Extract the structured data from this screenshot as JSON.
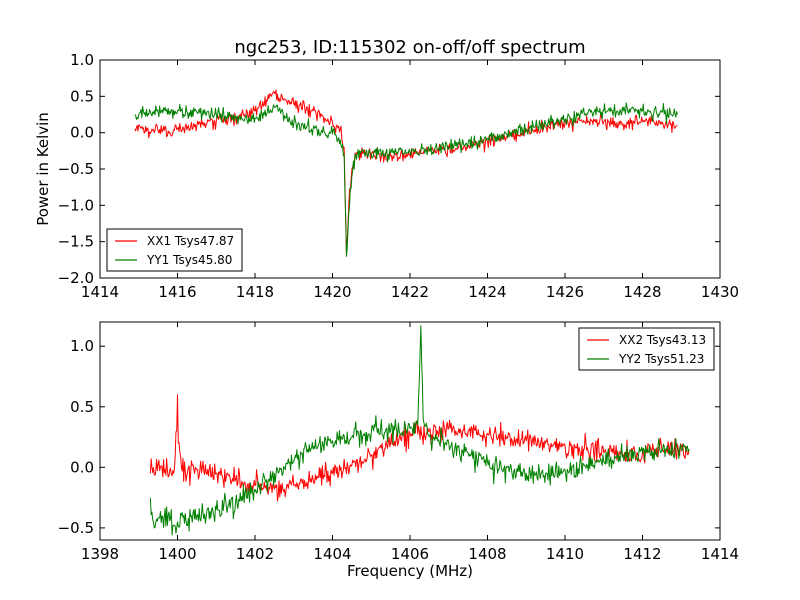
{
  "figure": {
    "title": "ngc253, ID:115302 on-off/off spectrum"
  },
  "chart_data": [
    {
      "type": "line",
      "title": "ngc253, ID:115302 on-off/off spectrum",
      "xlabel": "",
      "ylabel": "Power in Kelvin",
      "xlim": [
        1414,
        1430
      ],
      "ylim": [
        -2.0,
        1.0
      ],
      "xticks": [
        1414,
        1416,
        1418,
        1420,
        1422,
        1424,
        1426,
        1428,
        1430
      ],
      "yticks": [
        -2.0,
        -1.5,
        -1.0,
        -0.5,
        0.0,
        0.5,
        1.0
      ],
      "xtick_labels": [
        "1414",
        "1416",
        "1418",
        "1420",
        "1422",
        "1424",
        "1426",
        "1428",
        "1430"
      ],
      "ytick_labels": [
        "−2.0",
        "−1.5",
        "−1.0",
        "−0.5",
        "0.0",
        "0.5",
        "1.0"
      ],
      "grid": false,
      "legend_position": "lower-left",
      "series": [
        {
          "name": "XX1 Tsys47.87",
          "color": "#ff0000",
          "x": [
            1414.9,
            1415.5,
            1416.0,
            1416.5,
            1417.0,
            1417.5,
            1418.0,
            1418.3,
            1418.5,
            1418.8,
            1419.0,
            1419.5,
            1419.8,
            1420.0,
            1420.1,
            1420.2,
            1420.3,
            1420.36,
            1420.42,
            1420.5,
            1420.6,
            1420.8,
            1421.0,
            1421.5,
            1422.0,
            1422.5,
            1423.0,
            1423.5,
            1424.0,
            1424.5,
            1425.0,
            1425.5,
            1426.0,
            1426.5,
            1427.0,
            1427.5,
            1428.0,
            1428.5,
            1428.9
          ],
          "y": [
            0.05,
            0.02,
            0.05,
            0.1,
            0.15,
            0.2,
            0.3,
            0.45,
            0.55,
            0.45,
            0.4,
            0.3,
            0.2,
            0.15,
            0.1,
            0.05,
            -0.2,
            -1.7,
            -1.0,
            -0.5,
            -0.3,
            -0.28,
            -0.3,
            -0.32,
            -0.3,
            -0.25,
            -0.22,
            -0.18,
            -0.12,
            -0.05,
            0.02,
            0.08,
            0.12,
            0.15,
            0.15,
            0.12,
            0.15,
            0.12,
            0.1
          ]
        },
        {
          "name": "YY1 Tsys45.80",
          "color": "#008000",
          "x": [
            1414.9,
            1415.5,
            1416.0,
            1416.5,
            1417.0,
            1417.5,
            1418.0,
            1418.3,
            1418.5,
            1418.8,
            1419.0,
            1419.5,
            1419.8,
            1420.0,
            1420.1,
            1420.2,
            1420.3,
            1420.36,
            1420.42,
            1420.5,
            1420.6,
            1420.8,
            1421.0,
            1421.5,
            1422.0,
            1422.5,
            1423.0,
            1423.5,
            1424.0,
            1424.5,
            1425.0,
            1425.5,
            1426.0,
            1426.5,
            1427.0,
            1427.5,
            1428.0,
            1428.5,
            1428.9
          ],
          "y": [
            0.25,
            0.28,
            0.3,
            0.28,
            0.25,
            0.22,
            0.2,
            0.25,
            0.35,
            0.2,
            0.12,
            0.05,
            0.0,
            -0.02,
            -0.05,
            -0.1,
            -0.3,
            -1.7,
            -1.1,
            -0.6,
            -0.3,
            -0.25,
            -0.3,
            -0.28,
            -0.27,
            -0.25,
            -0.2,
            -0.15,
            -0.08,
            -0.02,
            0.05,
            0.12,
            0.18,
            0.25,
            0.3,
            0.3,
            0.3,
            0.28,
            0.25
          ]
        }
      ]
    },
    {
      "type": "line",
      "title": "",
      "xlabel": "Frequency (MHz)",
      "ylabel": "",
      "xlim": [
        1398,
        1414
      ],
      "ylim": [
        -0.6,
        1.2
      ],
      "xticks": [
        1398,
        1400,
        1402,
        1404,
        1406,
        1408,
        1410,
        1412,
        1414
      ],
      "yticks": [
        -0.5,
        0.0,
        0.5,
        1.0
      ],
      "xtick_labels": [
        "1398",
        "1400",
        "1402",
        "1404",
        "1406",
        "1408",
        "1410",
        "1412",
        "1414"
      ],
      "ytick_labels": [
        "−0.5",
        "0.0",
        "0.5",
        "1.0"
      ],
      "grid": false,
      "legend_position": "upper-right",
      "series": [
        {
          "name": "XX2 Tsys43.13",
          "color": "#ff0000",
          "x": [
            1399.3,
            1399.6,
            1399.9,
            1399.98,
            1400.0,
            1400.02,
            1400.1,
            1400.5,
            1401.0,
            1401.5,
            1402.0,
            1402.5,
            1403.0,
            1403.5,
            1404.0,
            1404.5,
            1405.0,
            1405.5,
            1406.0,
            1406.5,
            1407.0,
            1407.5,
            1408.0,
            1408.5,
            1409.0,
            1409.5,
            1410.0,
            1410.5,
            1411.0,
            1411.5,
            1412.0,
            1412.5,
            1413.2
          ],
          "y": [
            -0.05,
            0.0,
            -0.05,
            0.3,
            0.6,
            0.2,
            0.0,
            -0.02,
            -0.05,
            -0.1,
            -0.15,
            -0.18,
            -0.15,
            -0.1,
            -0.05,
            0.02,
            0.1,
            0.2,
            0.28,
            0.3,
            0.32,
            0.3,
            0.28,
            0.25,
            0.22,
            0.2,
            0.18,
            0.15,
            0.12,
            0.1,
            0.12,
            0.15,
            0.15
          ]
        },
        {
          "name": "YY2 Tsys51.23",
          "color": "#008000",
          "x": [
            1399.3,
            1399.4,
            1399.6,
            1400.0,
            1400.5,
            1401.0,
            1401.5,
            1402.0,
            1402.5,
            1403.0,
            1403.5,
            1404.0,
            1404.5,
            1405.0,
            1405.5,
            1406.0,
            1406.2,
            1406.28,
            1406.34,
            1406.45,
            1406.6,
            1407.0,
            1407.5,
            1408.0,
            1408.5,
            1409.0,
            1409.5,
            1410.0,
            1410.5,
            1411.0,
            1411.5,
            1412.0,
            1412.5,
            1413.2
          ],
          "y": [
            -0.25,
            -0.5,
            -0.4,
            -0.45,
            -0.4,
            -0.35,
            -0.28,
            -0.2,
            -0.05,
            0.05,
            0.15,
            0.22,
            0.25,
            0.28,
            0.3,
            0.32,
            0.35,
            1.17,
            0.4,
            0.28,
            0.25,
            0.2,
            0.12,
            0.05,
            0.0,
            -0.05,
            -0.05,
            -0.02,
            0.02,
            0.05,
            0.1,
            0.12,
            0.15,
            0.15
          ]
        }
      ]
    }
  ]
}
